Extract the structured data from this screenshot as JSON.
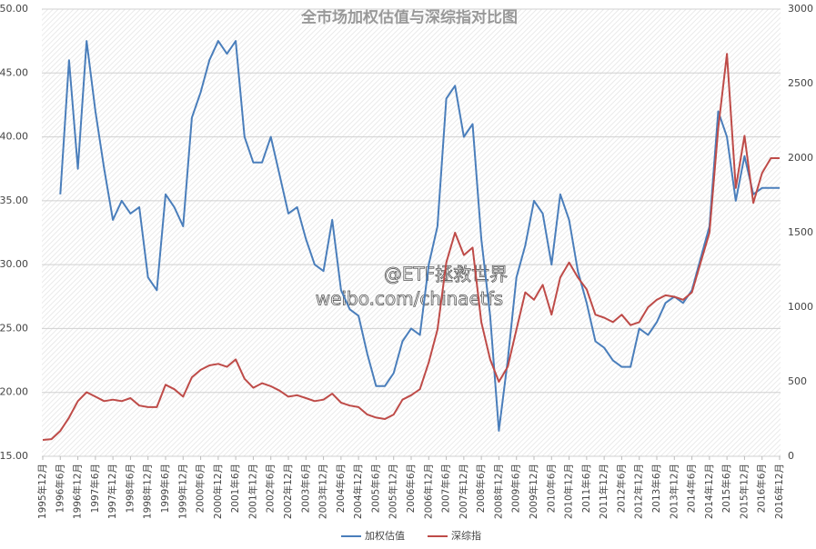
{
  "chart_data": {
    "type": "line",
    "title": "全市场加权估值与深综指对比图",
    "watermark": [
      "@ETF拯救世界",
      "weibo.com/chinaetfs"
    ],
    "categories": [
      "1995年12月",
      null,
      "1996年6月",
      null,
      "1996年12月",
      null,
      "1997年6月",
      null,
      "1997年12月",
      null,
      "1998年6月",
      null,
      "1998年12月",
      null,
      "1999年6月",
      null,
      "1999年12月",
      null,
      "2000年6月",
      null,
      "2000年12月",
      null,
      "2001年6月",
      null,
      "2001年12月",
      null,
      "2002年6月",
      null,
      "2002年12月",
      null,
      "2003年6月",
      null,
      "2003年12月",
      null,
      "2004年6月",
      null,
      "2004年12月",
      null,
      "2005年6月",
      null,
      "2005年12月",
      null,
      "2006年6月",
      null,
      "2006年12月",
      null,
      "2007年6月",
      null,
      "2007年12月",
      null,
      "2008年6月",
      null,
      "2008年12月",
      null,
      "2009年6月",
      null,
      "2009年12月",
      null,
      "2010年6月",
      null,
      "2010年12月",
      null,
      "2011年6月",
      null,
      "2011年12月",
      null,
      "2012年6月",
      null,
      "2012年12月",
      null,
      "2013年6月",
      null,
      "2013年12月",
      null,
      "2014年6月",
      null,
      "2014年12月",
      null,
      "2015年6月",
      null,
      "2015年12月",
      null,
      "2016年6月",
      null,
      "2016年12月"
    ],
    "series": [
      {
        "name": "加权估值",
        "color": "#4a7ebb",
        "values": [
          null,
          null,
          35.5,
          46,
          37.5,
          47.5,
          42,
          37.5,
          33.5,
          35,
          34,
          34.5,
          29,
          28,
          35.5,
          34.5,
          33,
          41.5,
          43.5,
          46,
          47.5,
          46.5,
          47.5,
          40,
          38,
          38,
          40,
          37,
          34,
          34.5,
          32,
          30,
          29.5,
          33.5,
          28,
          26.5,
          26,
          23,
          20.5,
          20.5,
          21.5,
          24,
          25,
          24.5,
          30,
          33,
          43,
          44,
          40,
          41,
          32,
          26,
          17,
          22.5,
          29,
          31.5,
          35,
          34,
          30,
          35.5,
          33.5,
          29.5,
          27,
          24,
          23.5,
          22.5,
          22,
          22,
          25,
          24.5,
          25.5,
          27,
          27.5,
          27,
          28,
          30.5,
          33,
          42,
          40,
          35,
          38.5,
          35.5,
          36,
          36,
          36
        ]
      },
      {
        "name": "深综指",
        "color": "#be4b48",
        "axis": "y2",
        "values": [
          110,
          115,
          170,
          260,
          370,
          430,
          400,
          370,
          380,
          370,
          390,
          340,
          330,
          330,
          480,
          450,
          400,
          530,
          580,
          610,
          620,
          600,
          650,
          520,
          460,
          490,
          470,
          440,
          400,
          410,
          390,
          370,
          380,
          420,
          360,
          340,
          330,
          280,
          260,
          250,
          280,
          380,
          410,
          450,
          630,
          850,
          1300,
          1500,
          1350,
          1400,
          900,
          650,
          500,
          600,
          850,
          1100,
          1050,
          1150,
          950,
          1200,
          1300,
          1200,
          1120,
          950,
          930,
          900,
          950,
          880,
          900,
          1000,
          1050,
          1080,
          1070,
          1050,
          1100,
          1300,
          1500,
          2200,
          2700,
          1800,
          2150,
          1700,
          1900,
          2000,
          2000
        ]
      }
    ],
    "ylim": [
      15,
      50
    ],
    "yticks": [
      {
        "value": 15,
        "label": "15.00"
      },
      {
        "value": 20,
        "label": "20.00"
      },
      {
        "value": 25,
        "label": "25.00"
      },
      {
        "value": 30,
        "label": "30.00"
      },
      {
        "value": 35,
        "label": "35.00"
      },
      {
        "value": 40,
        "label": "40.00"
      },
      {
        "value": 45,
        "label": "45.00"
      },
      {
        "value": 50,
        "label": "50.00"
      }
    ],
    "y2lim": [
      0,
      3000
    ],
    "y2ticks": [
      0,
      500,
      1000,
      1500,
      2000,
      2500,
      3000
    ],
    "grid": true,
    "legend": "bottom"
  }
}
